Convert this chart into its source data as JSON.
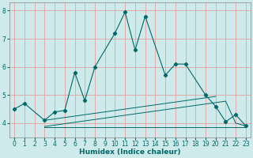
{
  "xlabel": "Humidex (Indice chaleur)",
  "bg_color": "#ceeaea",
  "grid_color": "#e8a0a0",
  "line_color": "#006868",
  "main_x": [
    0,
    1,
    3,
    4,
    5,
    6,
    7,
    8,
    10,
    11,
    12,
    13,
    15,
    16,
    17,
    19,
    20,
    21,
    22,
    23
  ],
  "main_y": [
    4.5,
    4.7,
    4.1,
    4.4,
    4.45,
    5.8,
    4.8,
    6.0,
    7.2,
    7.95,
    6.6,
    7.8,
    5.7,
    6.1,
    6.1,
    5.0,
    4.6,
    4.05,
    4.3,
    3.9
  ],
  "flat1_x": [
    3,
    4,
    5,
    6,
    7,
    8,
    9,
    10,
    11,
    12,
    13,
    14,
    15,
    16,
    17,
    18,
    19,
    20,
    21,
    22,
    23
  ],
  "flat1_y": [
    3.88,
    3.93,
    3.98,
    4.03,
    4.08,
    4.13,
    4.18,
    4.23,
    4.28,
    4.33,
    4.38,
    4.43,
    4.48,
    4.53,
    4.58,
    4.63,
    4.68,
    4.73,
    4.78,
    4.0,
    3.9
  ],
  "flat2_x": [
    3,
    4,
    5,
    6,
    7,
    8,
    9,
    10,
    11,
    12,
    13,
    14,
    15,
    16,
    17,
    18,
    19,
    20
  ],
  "flat2_y": [
    4.1,
    4.15,
    4.2,
    4.25,
    4.3,
    4.35,
    4.4,
    4.45,
    4.5,
    4.55,
    4.6,
    4.65,
    4.7,
    4.75,
    4.8,
    4.85,
    4.9,
    4.95
  ],
  "flat3_x": [
    3,
    4,
    5,
    6,
    7,
    8,
    9,
    10,
    11,
    12,
    13,
    14,
    15,
    16,
    17,
    18,
    19,
    20,
    21,
    22,
    23
  ],
  "flat3_y": [
    3.85,
    3.85,
    3.85,
    3.85,
    3.85,
    3.85,
    3.85,
    3.85,
    3.85,
    3.85,
    3.85,
    3.85,
    3.85,
    3.85,
    3.85,
    3.85,
    3.85,
    3.85,
    3.85,
    3.85,
    3.85
  ],
  "ylim": [
    3.5,
    8.3
  ],
  "xlim": [
    -0.5,
    23.5
  ],
  "yticks": [
    4,
    5,
    6,
    7,
    8
  ],
  "xticks": [
    0,
    1,
    2,
    3,
    4,
    5,
    6,
    7,
    8,
    9,
    10,
    11,
    12,
    13,
    14,
    15,
    16,
    17,
    18,
    19,
    20,
    21,
    22,
    23
  ],
  "tick_fontsize": 5.5,
  "xlabel_fontsize": 6.5
}
